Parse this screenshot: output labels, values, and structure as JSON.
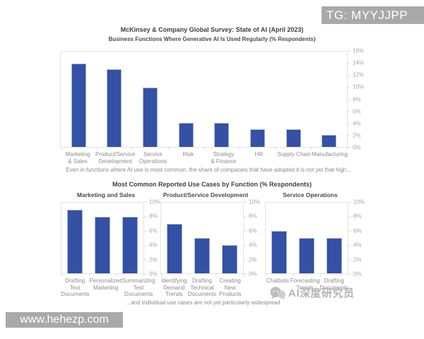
{
  "header": {
    "title": "McKinsey & Company Global Survey: State of AI (April 2023)",
    "subtitle": "Business Functions Where Generative AI Is Used Regularly (% Respondents)"
  },
  "captions": {
    "top": "Even in functions where AI use is most common, the share of companies that have adopted it is not yet that high...",
    "bottom": "...and individual use cases are not yet particularly widespread"
  },
  "bottom_section": {
    "title": "Most Common Reported Use Cases by Function (% Respondents)"
  },
  "watermarks": {
    "tg_badge": "TG: MYYJJPP",
    "url_badge": "www.hehezp.com",
    "wechat_account": "AI深度研究员",
    "wechat_icon": "chat-bubbles-icon",
    "badge_bg": "#a9a9a9",
    "watermark_text_color": "#b3b3b3"
  },
  "colors": {
    "bar": "#3351a5",
    "bar_border": "#aab4d8",
    "frame": "#e4e4e6",
    "tick_text": "#a6a6a6",
    "category_text": "#8c8c8c"
  },
  "chart_data": [
    {
      "type": "bar",
      "title": "McKinsey & Company Global Survey: State of AI (April 2023)",
      "subtitle": "Business Functions Where Generative AI Is Used Regularly (% Respondents)",
      "categories": [
        "Marketing\n& Sales",
        "Product/Service\nDevelopment",
        "Service\nOperations",
        "Risk",
        "Strategy\n& Finance",
        "HR",
        "Supply Chain",
        "Manufacturing"
      ],
      "values": [
        14,
        13,
        10,
        4,
        4,
        3,
        3,
        2
      ],
      "xlabel": "",
      "ylabel": "% Respondents",
      "ylim": [
        0,
        16
      ],
      "yticks": [
        "16%",
        "14%",
        "12%",
        "10%",
        "8%",
        "6%",
        "4%",
        "2%",
        "0%"
      ],
      "ytick_side": "right",
      "grid": false,
      "legend": false,
      "bar_color": "#3351a5"
    },
    {
      "type": "bar",
      "title": "Marketing and Sales",
      "categories": [
        "Drafting Text\nDocuments",
        "Personalized\nMarketing",
        "Summarizing\nText\nDocuments"
      ],
      "values": [
        9,
        8,
        8
      ],
      "xlabel": "",
      "ylabel": "% Respondents",
      "ylim": [
        0,
        10
      ],
      "yticks": [
        "10%",
        "8%",
        "6%",
        "4%",
        "2%",
        "0%"
      ],
      "ytick_side": "right",
      "grid": false,
      "legend": false,
      "bar_color": "#3351a5"
    },
    {
      "type": "bar",
      "title": "Product/Service Development",
      "categories": [
        "Identifying\nDemand\nTrends",
        "Drafting\nTechnical\nDocuments",
        "Creating\nNew\nProducts"
      ],
      "values": [
        7,
        5,
        4
      ],
      "xlabel": "",
      "ylabel": "% Respondents",
      "ylim": [
        0,
        10
      ],
      "yticks": [
        "10%",
        "8%",
        "6%",
        "4%",
        "2%",
        "0%"
      ],
      "ytick_side": "right",
      "grid": false,
      "legend": false,
      "bar_color": "#3351a5"
    },
    {
      "type": "bar",
      "title": "Service Operations",
      "categories": [
        "Chatbots",
        "Forecasting\nTrends",
        "Drafting\nDocuments"
      ],
      "values": [
        6,
        5,
        5
      ],
      "xlabel": "",
      "ylabel": "% Respondents",
      "ylim": [
        0,
        10
      ],
      "yticks": [
        "10%",
        "8%",
        "6%",
        "4%",
        "2%",
        "0%"
      ],
      "ytick_side": "right",
      "grid": false,
      "legend": false,
      "bar_color": "#3351a5"
    }
  ]
}
